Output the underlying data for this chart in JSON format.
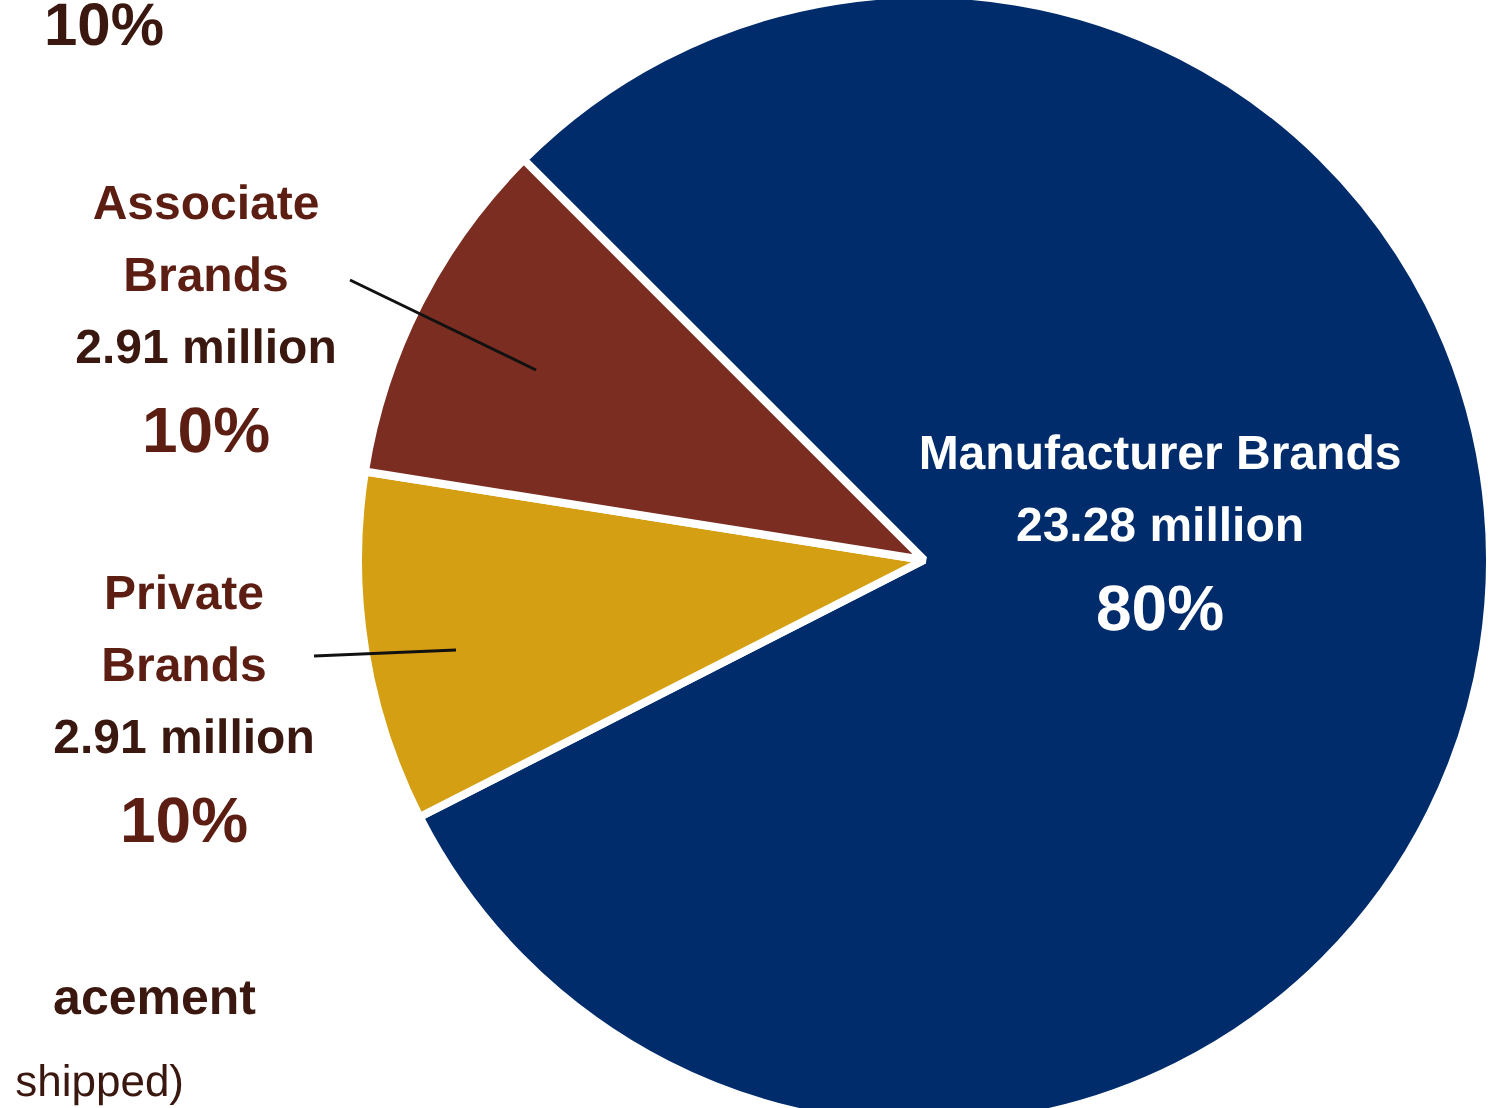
{
  "chart_data": {
    "type": "pie",
    "categories": [
      "Manufacturer Brands",
      "Private Brands",
      "Associate Brands"
    ],
    "values": [
      80,
      10,
      10
    ],
    "value_labels": [
      "80%",
      "10%",
      "10%"
    ],
    "colors": [
      "#002c6c",
      "#d49f12",
      "#7a2d20"
    ],
    "legend": false,
    "annotations": [
      "10%",
      "acement",
      "shipped)",
      "23.28 million",
      "2.91 million",
      "2.91 million"
    ]
  }
}
